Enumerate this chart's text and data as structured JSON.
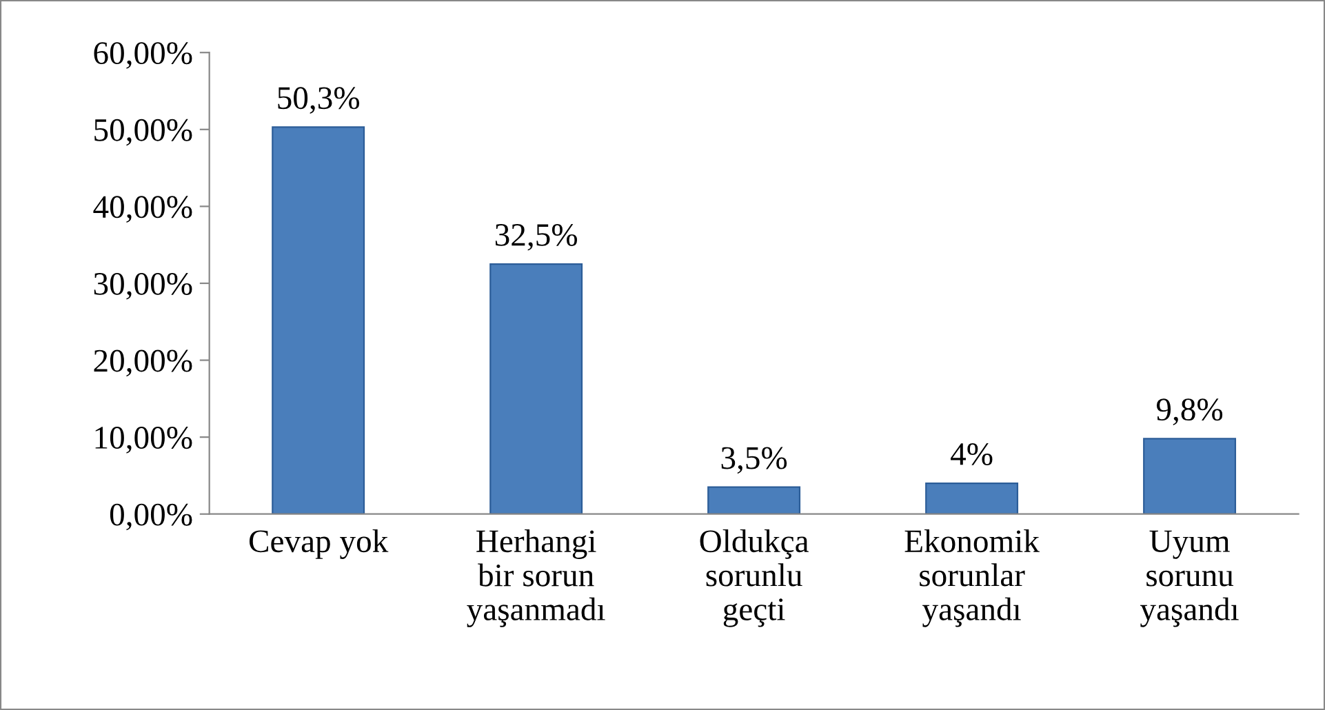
{
  "chart_data": {
    "type": "bar",
    "categories": [
      "Cevap yok",
      "Herhangi\nbir sorun\nyaşanmadı",
      "Oldukça\nsorunlu\ngeçti",
      "Ekonomik\nsorunlar\nyaşandı",
      "Uyum\nsorunu\nyaşandı"
    ],
    "values": [
      50.3,
      32.5,
      3.5,
      4,
      9.8
    ],
    "value_labels": [
      "50,3%",
      "32,5%",
      "3,5%",
      "4%",
      "9,8%"
    ],
    "color": "#4a7ebb",
    "ylim": [
      0,
      60
    ],
    "yticks": [
      {
        "value": 0,
        "label": "0,00%"
      },
      {
        "value": 10,
        "label": "10,00%"
      },
      {
        "value": 20,
        "label": "20,00%"
      },
      {
        "value": 30,
        "label": "30,00%"
      },
      {
        "value": 40,
        "label": "40,00%"
      },
      {
        "value": 50,
        "label": "50,00%"
      },
      {
        "value": 60,
        "label": "60,00%"
      }
    ],
    "grid": false,
    "legend": false
  }
}
